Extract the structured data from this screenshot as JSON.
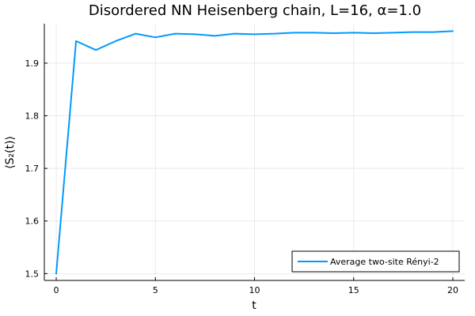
{
  "chart_data": {
    "type": "line",
    "title": "Disordered NN Heisenberg chain, L=16, α=1.0",
    "xlabel": "t",
    "ylabel": "⟨S₂(t)⟩",
    "xlim": [
      -0.6,
      20.6
    ],
    "ylim": [
      1.487,
      1.975
    ],
    "xticks": [
      0,
      5,
      10,
      15,
      20
    ],
    "xtick_labels": [
      "0",
      "5",
      "10",
      "15",
      "20"
    ],
    "yticks": [
      1.5,
      1.6,
      1.7,
      1.8,
      1.9
    ],
    "ytick_labels": [
      "1.5",
      "1.6",
      "1.7",
      "1.8",
      "1.9"
    ],
    "grid": true,
    "legend_position": "bottom-right",
    "series": [
      {
        "name": "Average two-site Rényi-2",
        "color": "#009AFA",
        "x": [
          0,
          1,
          2,
          3,
          4,
          5,
          6,
          7,
          8,
          9,
          10,
          11,
          12,
          13,
          14,
          15,
          16,
          17,
          18,
          19,
          20
        ],
        "y": [
          1.5,
          1.942,
          1.925,
          1.942,
          1.956,
          1.949,
          1.956,
          1.955,
          1.952,
          1.956,
          1.955,
          1.956,
          1.958,
          1.958,
          1.957,
          1.958,
          1.957,
          1.958,
          1.959,
          1.959,
          1.961
        ]
      }
    ]
  }
}
